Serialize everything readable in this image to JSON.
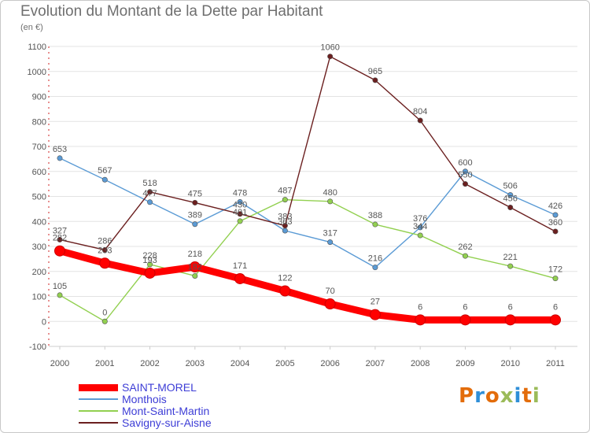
{
  "title": "Evolution du Montant de la Dette par Habitant",
  "subtitle": "(en €)",
  "logo": {
    "text": "Proxiti",
    "colors": [
      "#e36c0a",
      "#2f8fd8",
      "#e36c0a",
      "#9bbb59",
      "#2f8fd8",
      "#e36c0a",
      "#9bbb59"
    ]
  },
  "chart_data": {
    "type": "line",
    "categories": [
      "2000",
      "2001",
      "2002",
      "2003",
      "2004",
      "2005",
      "2006",
      "2007",
      "2008",
      "2009",
      "2010",
      "2011"
    ],
    "ylim": [
      -100,
      1100
    ],
    "yticks": [
      -100,
      0,
      100,
      200,
      300,
      400,
      500,
      600,
      700,
      800,
      900,
      1000,
      1100
    ],
    "legend_position": "bottom-left",
    "series": [
      {
        "name": "SAINT-MOREL",
        "color": "#ff0000",
        "values": [
          282,
          233,
          193,
          218,
          171,
          122,
          70,
          27,
          6,
          6,
          6,
          6
        ]
      },
      {
        "name": "Monthois",
        "color": "#5b9bd5",
        "values": [
          653,
          567,
          477,
          389,
          478,
          363,
          317,
          216,
          376,
          600,
          506,
          426
        ]
      },
      {
        "name": "Mont-Saint-Martin",
        "color": "#92d050",
        "values": [
          105,
          0,
          228,
          182,
          401,
          487,
          480,
          388,
          344,
          262,
          221,
          172
        ]
      },
      {
        "name": "Savigny-sur-Aisne",
        "color": "#6b1f1f",
        "values": [
          327,
          286,
          518,
          475,
          430,
          383,
          1060,
          965,
          804,
          550,
          456,
          360
        ]
      }
    ]
  }
}
